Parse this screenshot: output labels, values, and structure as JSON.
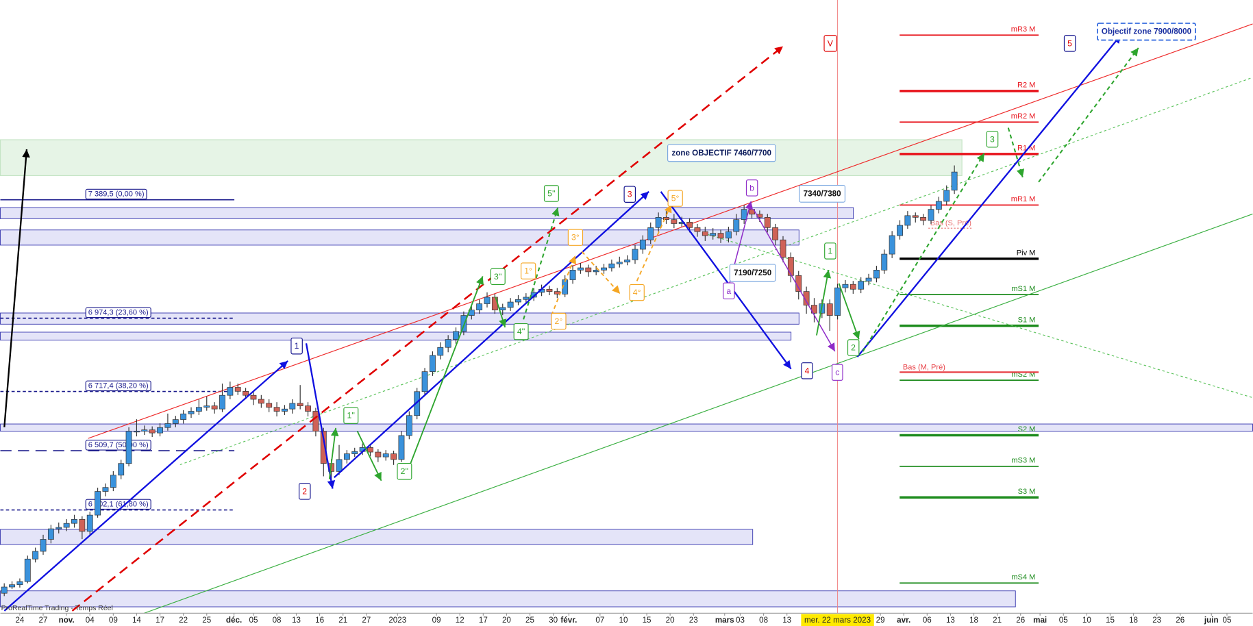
{
  "chart_data": {
    "type": "candlestick",
    "source": "ProRealTime Trading - Temps Réel",
    "xlim": [
      -0.5,
      160.3
    ],
    "ylim": [
      5940,
      8090
    ],
    "up_color": "#3a92dc",
    "down_color": "#cf6257",
    "xticks": [
      {
        "value": 2,
        "label": "24"
      },
      {
        "value": 5,
        "label": "27"
      },
      {
        "value": 8,
        "label": "nov."
      },
      {
        "value": 11,
        "label": "04"
      },
      {
        "value": 14,
        "label": "09"
      },
      {
        "value": 17,
        "label": "14"
      },
      {
        "value": 20,
        "label": "17"
      },
      {
        "value": 23,
        "label": "22"
      },
      {
        "value": 26,
        "label": "25"
      },
      {
        "value": 29.5,
        "label": "déc."
      },
      {
        "value": 32,
        "label": "05"
      },
      {
        "value": 35,
        "label": "08"
      },
      {
        "value": 37.5,
        "label": "13"
      },
      {
        "value": 40.5,
        "label": "16"
      },
      {
        "value": 43.5,
        "label": "21"
      },
      {
        "value": 46.5,
        "label": "27"
      },
      {
        "value": 50.5,
        "label": "2023"
      },
      {
        "value": 55.5,
        "label": "09"
      },
      {
        "value": 58.5,
        "label": "12"
      },
      {
        "value": 61.5,
        "label": "17"
      },
      {
        "value": 64.5,
        "label": "20"
      },
      {
        "value": 67.5,
        "label": "25"
      },
      {
        "value": 70.5,
        "label": "30"
      },
      {
        "value": 72.5,
        "label": "févr."
      },
      {
        "value": 76.5,
        "label": "07"
      },
      {
        "value": 79.5,
        "label": "10"
      },
      {
        "value": 82.5,
        "label": "15"
      },
      {
        "value": 85.5,
        "label": "20"
      },
      {
        "value": 88.5,
        "label": "23"
      },
      {
        "value": 92.5,
        "label": "mars"
      },
      {
        "value": 94.5,
        "label": "03"
      },
      {
        "value": 97.5,
        "label": "08"
      },
      {
        "value": 100.5,
        "label": "13"
      },
      {
        "value": 112.5,
        "label": "29"
      },
      {
        "value": 115.5,
        "label": "avr."
      },
      {
        "value": 118.5,
        "label": "06"
      },
      {
        "value": 121.5,
        "label": "13"
      },
      {
        "value": 124.5,
        "label": "18"
      },
      {
        "value": 127.5,
        "label": "21"
      },
      {
        "value": 130.5,
        "label": "26"
      },
      {
        "value": 133,
        "label": "mai"
      },
      {
        "value": 136,
        "label": "05"
      },
      {
        "value": 139,
        "label": "10"
      },
      {
        "value": 142,
        "label": "15"
      },
      {
        "value": 145,
        "label": "18"
      },
      {
        "value": 148,
        "label": "23"
      },
      {
        "value": 151,
        "label": "26"
      },
      {
        "value": 155,
        "label": "juin"
      },
      {
        "value": 157,
        "label": "05"
      }
    ],
    "crosshair": {
      "value": 107,
      "label": "mer. 22 mars 2023"
    },
    "candles": [
      [
        6010,
        6045,
        6000,
        6032
      ],
      [
        6032,
        6052,
        6025,
        6040
      ],
      [
        6040,
        6062,
        6030,
        6051
      ],
      [
        6051,
        6142,
        6045,
        6130
      ],
      [
        6130,
        6170,
        6118,
        6157
      ],
      [
        6157,
        6215,
        6145,
        6199
      ],
      [
        6199,
        6250,
        6185,
        6236
      ],
      [
        6236,
        6258,
        6220,
        6241
      ],
      [
        6241,
        6270,
        6228,
        6255
      ],
      [
        6255,
        6285,
        6240,
        6269
      ],
      [
        6269,
        6280,
        6200,
        6227
      ],
      [
        6227,
        6296,
        6215,
        6284
      ],
      [
        6284,
        6380,
        6275,
        6367
      ],
      [
        6367,
        6395,
        6350,
        6381
      ],
      [
        6381,
        6438,
        6368,
        6424
      ],
      [
        6424,
        6478,
        6410,
        6465
      ],
      [
        6465,
        6592,
        6455,
        6578
      ],
      [
        6578,
        6620,
        6560,
        6578
      ],
      [
        6578,
        6598,
        6565,
        6583
      ],
      [
        6583,
        6595,
        6558,
        6572
      ],
      [
        6572,
        6606,
        6560,
        6591
      ],
      [
        6591,
        6640,
        6580,
        6605
      ],
      [
        6605,
        6632,
        6592,
        6619
      ],
      [
        6619,
        6652,
        6605,
        6639
      ],
      [
        6639,
        6662,
        6625,
        6648
      ],
      [
        6648,
        6690,
        6635,
        6662
      ],
      [
        6662,
        6700,
        6650,
        6667
      ],
      [
        6667,
        6680,
        6640,
        6656
      ],
      [
        6656,
        6745,
        6645,
        6704
      ],
      [
        6704,
        6752,
        6690,
        6732
      ],
      [
        6732,
        6745,
        6705,
        6718
      ],
      [
        6718,
        6730,
        6690,
        6704
      ],
      [
        6704,
        6715,
        6670,
        6690
      ],
      [
        6690,
        6705,
        6660,
        6676
      ],
      [
        6676,
        6690,
        6645,
        6662
      ],
      [
        6662,
        6680,
        6630,
        6648
      ],
      [
        6648,
        6670,
        6635,
        6656
      ],
      [
        6656,
        6690,
        6640,
        6676
      ],
      [
        6676,
        6740,
        6655,
        6667
      ],
      [
        6667,
        6680,
        6630,
        6648
      ],
      [
        6648,
        6660,
        6560,
        6578
      ],
      [
        6578,
        6590,
        6420,
        6465
      ],
      [
        6465,
        6480,
        6400,
        6437
      ],
      [
        6437,
        6530,
        6425,
        6479
      ],
      [
        6479,
        6512,
        6465,
        6499
      ],
      [
        6499,
        6520,
        6488,
        6507
      ],
      [
        6507,
        6535,
        6495,
        6521
      ],
      [
        6521,
        6530,
        6490,
        6505
      ],
      [
        6505,
        6515,
        6470,
        6488
      ],
      [
        6488,
        6512,
        6475,
        6499
      ],
      [
        6499,
        6510,
        6460,
        6479
      ],
      [
        6479,
        6578,
        6470,
        6563
      ],
      [
        6563,
        6648,
        6550,
        6633
      ],
      [
        6633,
        6730,
        6620,
        6717
      ],
      [
        6717,
        6800,
        6705,
        6787
      ],
      [
        6787,
        6858,
        6772,
        6844
      ],
      [
        6844,
        6890,
        6830,
        6872
      ],
      [
        6872,
        6915,
        6855,
        6900
      ],
      [
        6900,
        6942,
        6885,
        6928
      ],
      [
        6928,
        6998,
        6915,
        6984
      ],
      [
        6984,
        7020,
        6970,
        7003
      ],
      [
        7003,
        7040,
        6990,
        7025
      ],
      [
        7025,
        7065,
        7012,
        7048
      ],
      [
        7048,
        7060,
        6990,
        7003
      ],
      [
        7003,
        7025,
        6985,
        7012
      ],
      [
        7012,
        7045,
        7000,
        7031
      ],
      [
        7031,
        7055,
        7020,
        7040
      ],
      [
        7040,
        7062,
        7028,
        7048
      ],
      [
        7048,
        7080,
        7035,
        7065
      ],
      [
        7065,
        7092,
        7052,
        7076
      ],
      [
        7076,
        7088,
        7055,
        7068
      ],
      [
        7068,
        7080,
        7045,
        7059
      ],
      [
        7059,
        7125,
        7048,
        7109
      ],
      [
        7109,
        7160,
        7095,
        7143
      ],
      [
        7143,
        7168,
        7130,
        7151
      ],
      [
        7151,
        7162,
        7120,
        7137
      ],
      [
        7137,
        7158,
        7125,
        7143
      ],
      [
        7143,
        7165,
        7130,
        7151
      ],
      [
        7151,
        7180,
        7138,
        7165
      ],
      [
        7165,
        7190,
        7152,
        7171
      ],
      [
        7171,
        7195,
        7160,
        7179
      ],
      [
        7179,
        7232,
        7165,
        7216
      ],
      [
        7216,
        7265,
        7200,
        7249
      ],
      [
        7249,
        7310,
        7235,
        7292
      ],
      [
        7292,
        7345,
        7278,
        7328
      ],
      [
        7328,
        7350,
        7305,
        7320
      ],
      [
        7320,
        7340,
        7290,
        7306
      ],
      [
        7306,
        7330,
        7295,
        7311
      ],
      [
        7311,
        7325,
        7275,
        7292
      ],
      [
        7292,
        7305,
        7260,
        7278
      ],
      [
        7278,
        7295,
        7245,
        7264
      ],
      [
        7264,
        7290,
        7250,
        7272
      ],
      [
        7272,
        7285,
        7238,
        7255
      ],
      [
        7255,
        7295,
        7240,
        7278
      ],
      [
        7278,
        7340,
        7265,
        7320
      ],
      [
        7320,
        7372,
        7305,
        7356
      ],
      [
        7356,
        7368,
        7325,
        7339
      ],
      [
        7339,
        7352,
        7312,
        7328
      ],
      [
        7328,
        7340,
        7275,
        7292
      ],
      [
        7292,
        7305,
        7230,
        7249
      ],
      [
        7249,
        7262,
        7170,
        7188
      ],
      [
        7188,
        7205,
        7100,
        7124
      ],
      [
        7124,
        7140,
        7040,
        7068
      ],
      [
        7068,
        7085,
        6990,
        7020
      ],
      [
        7020,
        7045,
        6960,
        6992
      ],
      [
        6992,
        7040,
        6975,
        7025
      ],
      [
        7025,
        7040,
        6930,
        6984
      ],
      [
        6984,
        7095,
        6970,
        7081
      ],
      [
        7081,
        7108,
        7065,
        7093
      ],
      [
        7093,
        7105,
        7060,
        7076
      ],
      [
        7076,
        7118,
        7062,
        7104
      ],
      [
        7104,
        7130,
        7090,
        7115
      ],
      [
        7115,
        7158,
        7100,
        7143
      ],
      [
        7143,
        7215,
        7130,
        7199
      ],
      [
        7199,
        7280,
        7185,
        7264
      ],
      [
        7264,
        7318,
        7250,
        7300
      ],
      [
        7300,
        7350,
        7288,
        7334
      ],
      [
        7334,
        7345,
        7310,
        7328
      ],
      [
        7328,
        7340,
        7300,
        7317
      ],
      [
        7317,
        7370,
        7305,
        7356
      ],
      [
        7356,
        7400,
        7342,
        7384
      ],
      [
        7384,
        7440,
        7370,
        7423
      ],
      [
        7423,
        7510,
        7410,
        7487
      ]
    ],
    "fibonacci": [
      {
        "value": 7389.5,
        "label": "7 389,5 (0,00 %)"
      },
      {
        "value": 6974.3,
        "label": "6 974,3 (23,60 %)"
      },
      {
        "value": 6717.4,
        "label": "6 717,4 (38,20 %)"
      },
      {
        "value": 6509.7,
        "label": "6 509,7 (50,00 %)"
      },
      {
        "value": 6302.1,
        "label": "6 302,1 (61,80 %)"
      }
    ],
    "pivots": [
      {
        "label": "mR3 M",
        "value": 7967,
        "color": "#e8141c"
      },
      {
        "label": "R2 M",
        "value": 7771,
        "color": "#e8141c"
      },
      {
        "label": "mR2 M",
        "value": 7662,
        "color": "#e8141c"
      },
      {
        "label": "R1 M",
        "value": 7550,
        "color": "#e8141c"
      },
      {
        "label": "mR1 M",
        "value": 7371,
        "color": "#e8141c"
      },
      {
        "label": "Piv M",
        "value": 7183,
        "color": "#000000"
      },
      {
        "label": "mS1 M",
        "value": 7057,
        "color": "#1e8c1e"
      },
      {
        "label": "S1 M",
        "value": 6948,
        "color": "#1e8c1e"
      },
      {
        "label": "mS2 M",
        "value": 6757,
        "color": "#1e8c1e"
      },
      {
        "label": "S2 M",
        "value": 6564,
        "color": "#1e8c1e"
      },
      {
        "label": "mS3 M",
        "value": 6455,
        "color": "#1e8c1e"
      },
      {
        "label": "S3 M",
        "value": 6346,
        "color": "#1e8c1e"
      },
      {
        "label": "mS4 M",
        "value": 6046,
        "color": "#1e8c1e"
      }
    ],
    "previous_lows": [
      {
        "label": "Bas (M, Pré)",
        "value": 6785,
        "color": "#e8444a"
      },
      {
        "label": "Bas (S, Pré)",
        "value": 7290,
        "color": "#e87070"
      }
    ],
    "annotations": [
      "zone OBJECTIF 7460/7700",
      "7340/7380",
      "7190/7250",
      "Objectif zone 7900/8000",
      "V",
      "1",
      "2",
      "3",
      "4",
      "5",
      "1''",
      "2''",
      "3''",
      "4''",
      "5''",
      "1°",
      "2°",
      "3°",
      "4°",
      "5°",
      "a",
      "b",
      "c",
      "1",
      "2",
      "3"
    ]
  }
}
